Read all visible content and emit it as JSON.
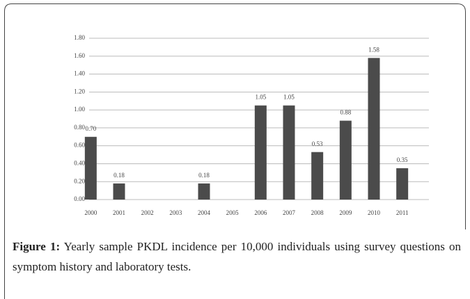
{
  "chart_data": {
    "type": "bar",
    "categories": [
      "2000",
      "2001",
      "2002",
      "2003",
      "2004",
      "2005",
      "2006",
      "2007",
      "2008",
      "2009",
      "2010",
      "2011"
    ],
    "values": [
      0.7,
      0.18,
      0,
      0,
      0.18,
      0,
      1.05,
      1.05,
      0.53,
      0.88,
      1.58,
      0.35
    ],
    "value_labels": [
      "0.70",
      "0.18",
      null,
      null,
      "0.18",
      null,
      "1.05",
      "1.05",
      "0.53",
      "0.88",
      "1.58",
      "0.35"
    ],
    "color": "#4b4b4b",
    "ylim": [
      0,
      1.8
    ],
    "yticks": [
      {
        "value": 0,
        "label": "0.00"
      },
      {
        "value": 0.2,
        "label": "0.20"
      },
      {
        "value": 0.4,
        "label": "0.40"
      },
      {
        "value": 0.6,
        "label": "0.60"
      },
      {
        "value": 0.8,
        "label": "0.80"
      },
      {
        "value": 1,
        "label": "1.00"
      },
      {
        "value": 1.2,
        "label": "1.20"
      },
      {
        "value": 1.4,
        "label": "1.40"
      },
      {
        "value": 1.6,
        "label": "1.60"
      },
      {
        "value": 1.8,
        "label": "1.80"
      }
    ],
    "grid": true
  },
  "caption": {
    "label": "Figure 1:",
    "text": "Yearly sample PKDL incidence per 10,000 individuals using survey questions on symptom history and laboratory tests."
  }
}
